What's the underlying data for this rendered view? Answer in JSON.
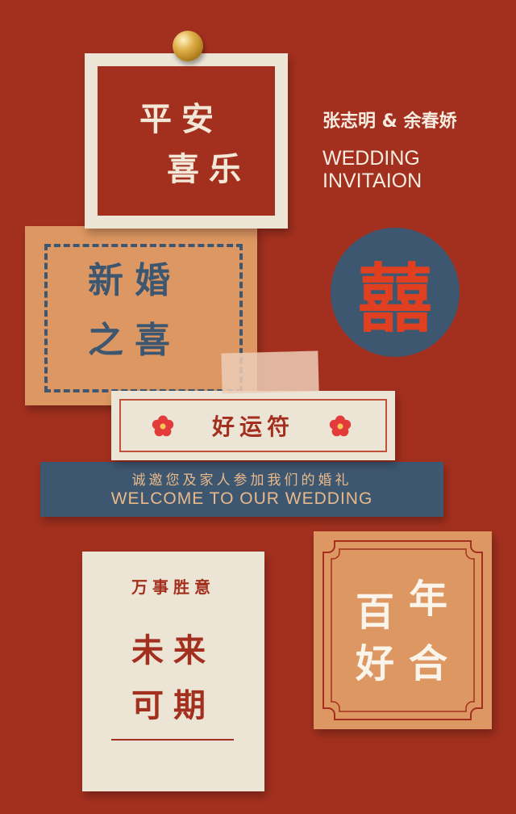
{
  "colors": {
    "background": "#a3301f",
    "cream": "#ece4d4",
    "orange": "#dd9762",
    "navy": "#3e5771",
    "xi_red": "#e0401f"
  },
  "card1": {
    "line1": "平安",
    "line2": "喜乐"
  },
  "couple": {
    "names": "张志明 & 余春娇"
  },
  "invitation": {
    "line1": "WEDDING",
    "line2": "INVITAION"
  },
  "card2": {
    "line1": "新婚",
    "line2": "之喜"
  },
  "xi": {
    "glyph": "囍"
  },
  "lucky": {
    "label": "好运符",
    "icon": "plum-blossom-icon"
  },
  "band": {
    "cn": "诚邀您及家人参加我们的婚礼",
    "en": "WELCOME TO OUR WEDDING"
  },
  "card3": {
    "small": "万事胜意",
    "line1": "未来",
    "line2": "可期"
  },
  "card4": {
    "char1": "百",
    "char2": "年",
    "char3": "好",
    "char4": "合"
  }
}
